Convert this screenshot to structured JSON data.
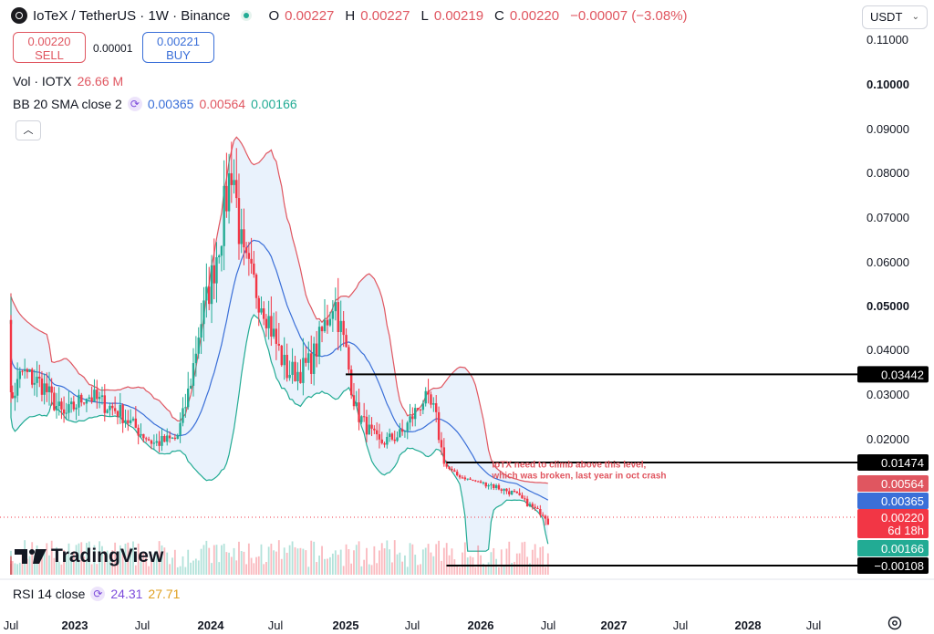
{
  "header": {
    "symbol_title": "IoTeX / TetherUS · 1W · Binance",
    "ohlc": [
      {
        "k": "O",
        "v": "0.00227"
      },
      {
        "k": "H",
        "v": "0.00227"
      },
      {
        "k": "L",
        "v": "0.00219"
      },
      {
        "k": "C",
        "v": "0.00220"
      },
      {
        "k": "",
        "v": "−0.00007 (−3.08%)"
      }
    ]
  },
  "trade": {
    "sell_price": "0.00220",
    "sell_label": "SELL",
    "spread": "0.00001",
    "buy_price": "0.00221",
    "buy_label": "BUY"
  },
  "indicators": {
    "vol_label": "Vol · IOTX",
    "vol_value": "26.66 M",
    "bb_label": "BB 20 SMA close 2",
    "bb_basis": "0.00365",
    "bb_upper": "0.00564",
    "bb_lower": "0.00166",
    "rsi_label": "RSI 14 close",
    "rsi_value": "24.31",
    "rsi_ma": "27.71"
  },
  "currency": "USDT",
  "brand": "TradingView",
  "colors": {
    "up": "#22ab94",
    "down": "#f23645",
    "upper": "#e05660",
    "basis": "#3a6fd8",
    "lower": "#22ab94",
    "band_fill": "#e9f2fc",
    "purple": "#7d4cdb"
  },
  "chart_data": {
    "type": "candlestick",
    "price_axis": {
      "ticks": [
        "0.11000",
        "0.10000",
        "0.09000",
        "0.08000",
        "0.07000",
        "0.06000",
        "0.05000",
        "0.04000",
        "0.03000",
        "0.02000"
      ],
      "bold": [
        "0.10000",
        "0.05000"
      ],
      "min": -0.004,
      "max": 0.112
    },
    "time_axis": {
      "ticks": [
        "Jul",
        "2023",
        "Jul",
        "2024",
        "Jul",
        "2025",
        "Jul",
        "2026",
        "Jul",
        "2027",
        "Jul",
        "2028",
        "Jul"
      ],
      "bold": [
        "2023",
        "2024",
        "2025",
        "2026",
        "2027",
        "2028"
      ]
    },
    "price_labels": [
      {
        "text": "0.03442",
        "value": 0.03442,
        "style": "black"
      },
      {
        "text": "0.01474",
        "value": 0.01474,
        "style": "black"
      },
      {
        "text": "0.00564",
        "value": 0.00564,
        "style": "upper"
      },
      {
        "text": "0.00365",
        "value": 0.00365,
        "style": "basis"
      },
      {
        "text": "0.00220",
        "value": 0.0022,
        "style": "down",
        "sub": "6d 18h"
      },
      {
        "text": "0.00166",
        "value": 0.00166,
        "style": "lower"
      },
      {
        "text": "−0.00108",
        "value": -0.00108,
        "style": "black"
      }
    ],
    "levels": [
      {
        "value": 0.03442,
        "from": "2025-01"
      },
      {
        "value": 0.01474,
        "from": "2025-10"
      },
      {
        "value": -0.00108,
        "from": "2025-10"
      }
    ],
    "annotation": {
      "text": [
        "IoTX need to climb above this level,",
        "which was broken, last year in oct crash"
      ],
      "value": 0.0125,
      "at": "2026-02"
    },
    "price_anchors": [
      [
        "2022-06",
        0.05
      ],
      [
        "2022-07",
        0.028
      ],
      [
        "2022-08",
        0.035
      ],
      [
        "2022-10",
        0.032
      ],
      [
        "2022-12",
        0.025
      ],
      [
        "2023-02",
        0.03
      ],
      [
        "2023-05",
        0.026
      ],
      [
        "2023-08",
        0.019
      ],
      [
        "2023-10",
        0.02
      ],
      [
        "2023-12",
        0.045
      ],
      [
        "2024-02",
        0.068
      ],
      [
        "2024-03",
        0.083
      ],
      [
        "2024-04",
        0.06
      ],
      [
        "2024-06",
        0.05
      ],
      [
        "2024-08",
        0.035
      ],
      [
        "2024-09",
        0.035
      ],
      [
        "2024-10",
        0.037
      ],
      [
        "2024-12",
        0.052
      ],
      [
        "2025-01",
        0.04
      ],
      [
        "2025-02",
        0.026
      ],
      [
        "2025-04",
        0.019
      ],
      [
        "2025-06",
        0.021
      ],
      [
        "2025-07",
        0.025
      ],
      [
        "2025-08",
        0.029
      ],
      [
        "2025-09",
        0.026
      ],
      [
        "2025-10",
        0.013
      ],
      [
        "2025-11",
        0.009
      ],
      [
        "2026-01",
        0.006
      ],
      [
        "2026-04",
        0.0045
      ],
      [
        "2026-07",
        0.0022
      ]
    ]
  }
}
